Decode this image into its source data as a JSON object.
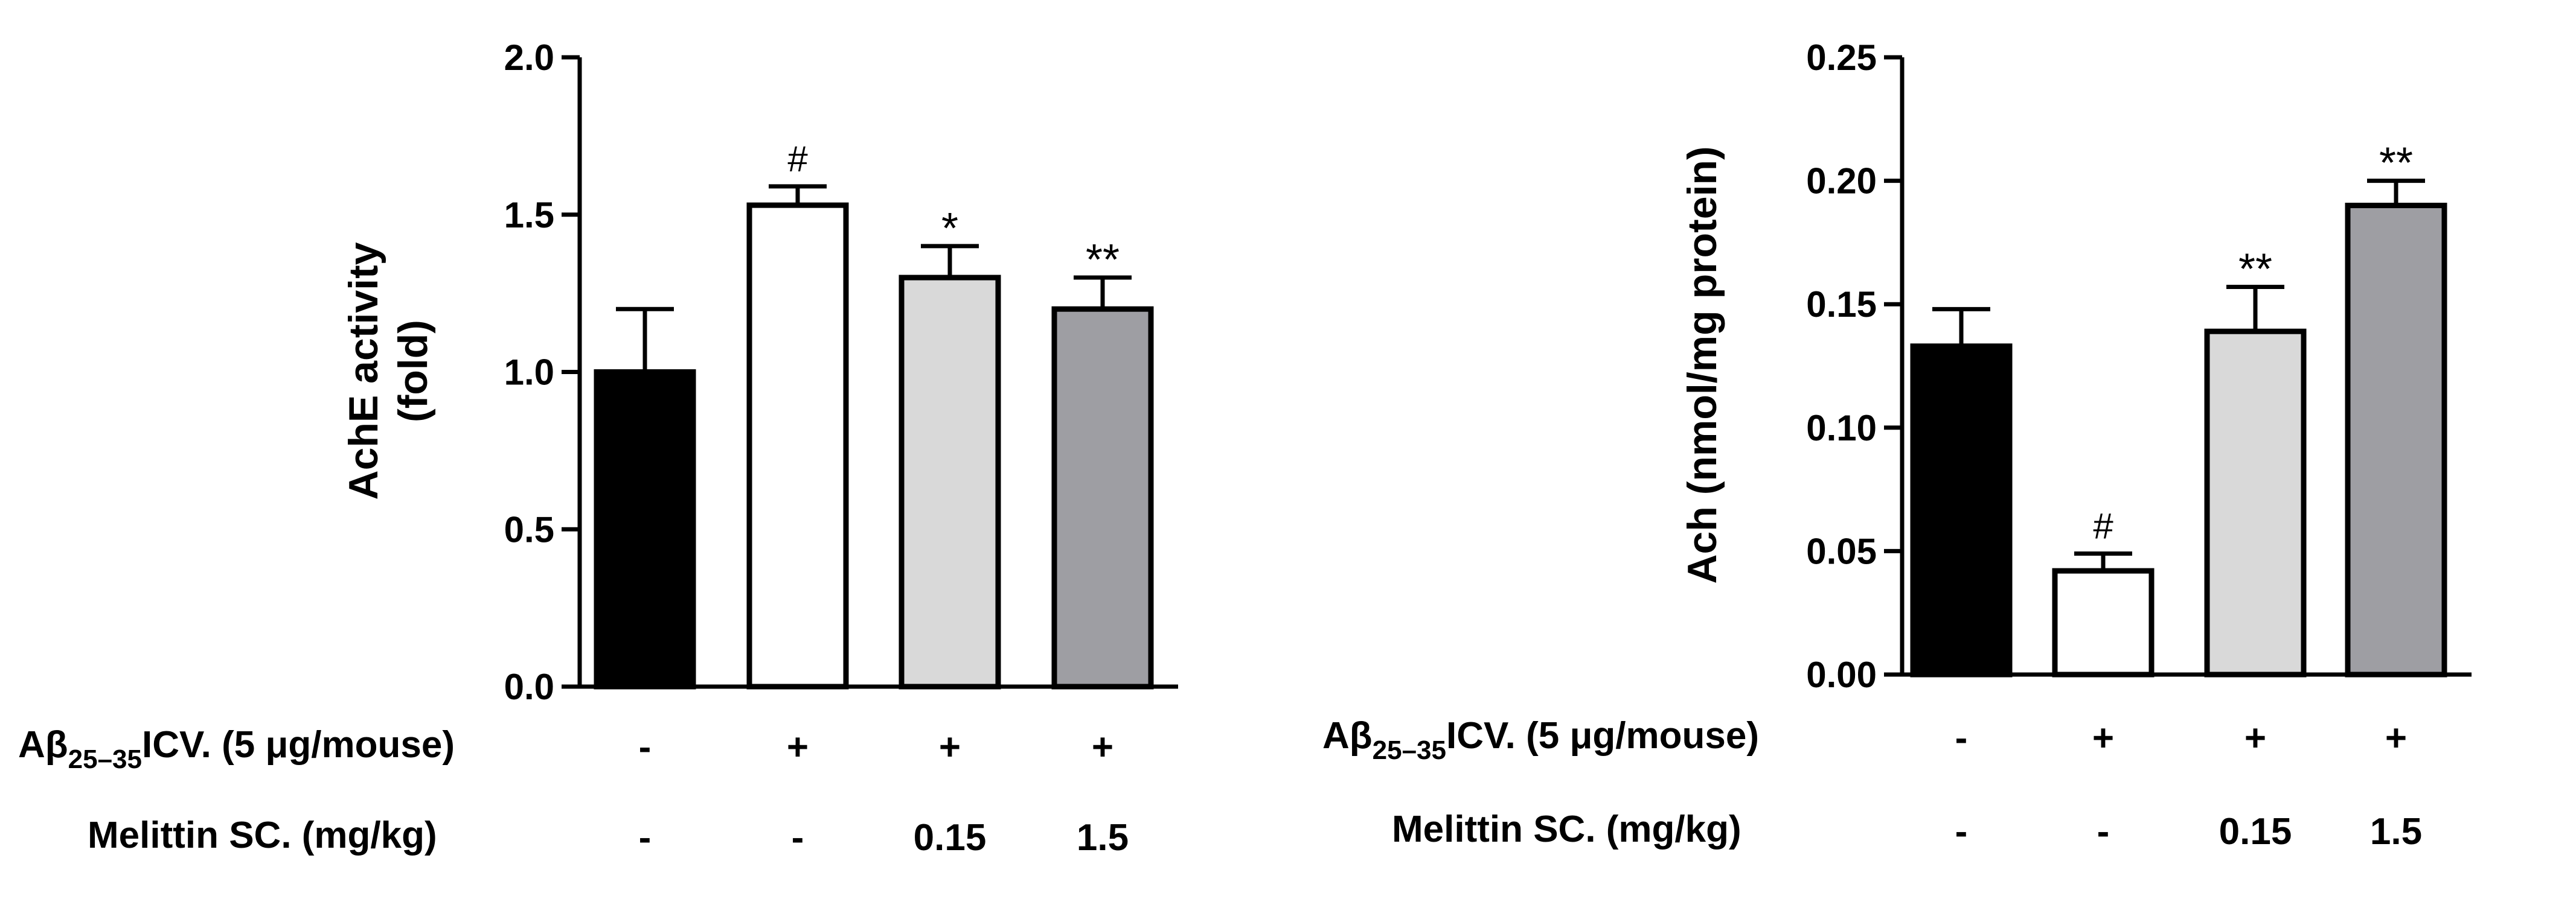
{
  "chart_data": [
    {
      "type": "bar",
      "title": "",
      "xlabel": "",
      "ylabel": "AchE activity\n(fold)",
      "ylim": [
        0,
        2.0
      ],
      "yticks": [
        "0.0",
        "0.5",
        "1.0",
        "1.5",
        "2.0"
      ],
      "ytick_values": [
        0,
        0.5,
        1.0,
        1.5,
        2.0
      ],
      "values": [
        1.0,
        1.53,
        1.3,
        1.2
      ],
      "errors": [
        0.2,
        0.06,
        0.1,
        0.1
      ],
      "fills": [
        "#000000",
        "#ffffff",
        "#d9d9d9",
        "#9e9ea3"
      ],
      "annotations": [
        "",
        "#",
        "*",
        "**"
      ],
      "condition_rows": [
        {
          "label": "Aβ",
          "sub": "25–35",
          "suffix": "ICV. (5 μg/mouse)",
          "values": [
            "-",
            "+",
            "+",
            "+"
          ]
        },
        {
          "label": "Melittin SC. (mg/kg)",
          "sub": "",
          "suffix": "",
          "values": [
            "-",
            "-",
            "0.15",
            "1.5"
          ]
        }
      ]
    },
    {
      "type": "bar",
      "title": "",
      "xlabel": "",
      "ylabel": "Ach (nmol/mg protein)",
      "ylim": [
        0,
        0.25
      ],
      "yticks": [
        "0.00",
        "0.05",
        "0.10",
        "0.15",
        "0.20",
        "0.25"
      ],
      "ytick_values": [
        0,
        0.05,
        0.1,
        0.15,
        0.2,
        0.25
      ],
      "values": [
        0.133,
        0.042,
        0.139,
        0.19
      ],
      "errors": [
        0.015,
        0.007,
        0.018,
        0.01
      ],
      "fills": [
        "#000000",
        "#ffffff",
        "#d9d9d9",
        "#9e9ea3"
      ],
      "annotations": [
        "",
        "#",
        "**",
        "**"
      ],
      "condition_rows": [
        {
          "label": "Aβ",
          "sub": "25–35",
          "suffix": "ICV. (5 μg/mouse)",
          "values": [
            "-",
            "+",
            "+",
            "+"
          ]
        },
        {
          "label": "Melittin SC. (mg/kg)",
          "sub": "",
          "suffix": "",
          "values": [
            "-",
            "-",
            "0.15",
            "1.5"
          ]
        }
      ]
    }
  ]
}
